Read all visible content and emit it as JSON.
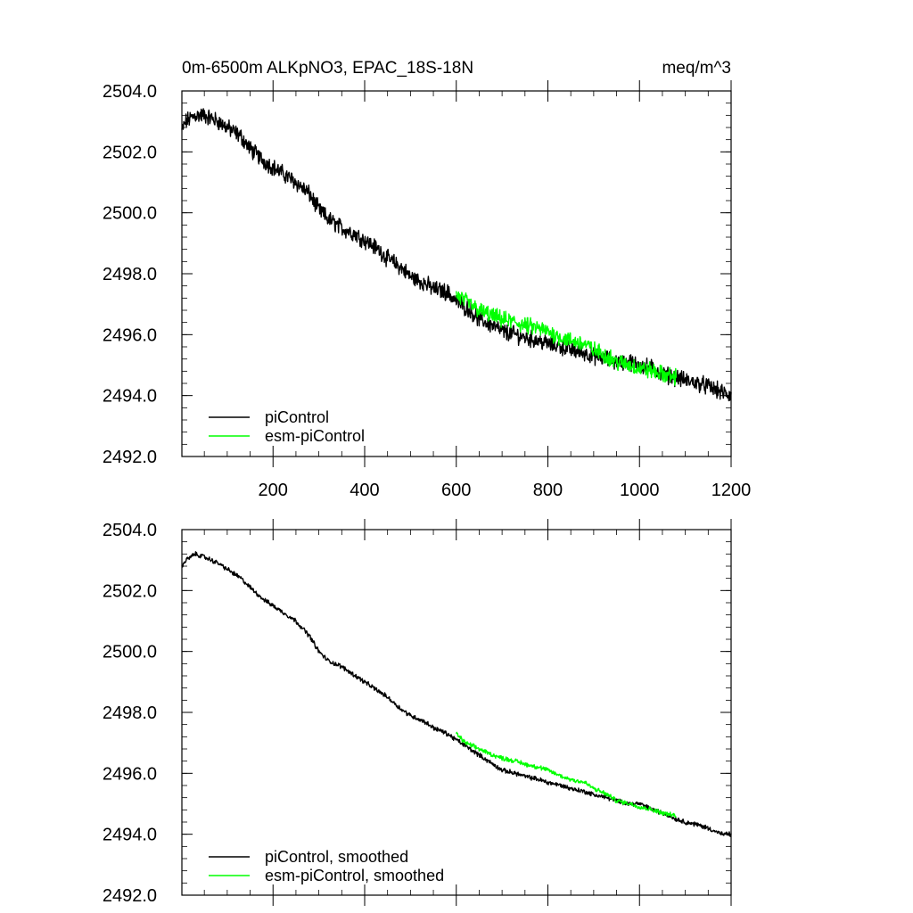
{
  "chart_data": [
    {
      "type": "line",
      "title": "0m-6500m ALKpNO3, EPAC_18S-18N",
      "units": "meq/m^3",
      "xlabel": "",
      "ylabel": "",
      "xlim": [
        1,
        1200
      ],
      "ylim": [
        2492.0,
        2504.0
      ],
      "xticks": [
        200,
        400,
        600,
        800,
        1000,
        1200
      ],
      "xtick_labels": [
        "200",
        "400",
        "600",
        "800",
        "1000",
        "1200"
      ],
      "yticks": [
        2492.0,
        2494.0,
        2496.0,
        2498.0,
        2500.0,
        2502.0,
        2504.0
      ],
      "ytick_labels": [
        "2492.0",
        "2494.0",
        "2496.0",
        "2498.0",
        "2500.0",
        "2502.0",
        "2504.0"
      ],
      "legend_position": "bottom-left",
      "series": [
        {
          "name": "piControl",
          "color": "#000000",
          "noise": 0.22,
          "x": [
            1,
            10,
            30,
            50,
            80,
            100,
            130,
            150,
            180,
            200,
            230,
            250,
            280,
            300,
            320,
            350,
            380,
            400,
            430,
            450,
            480,
            500,
            530,
            550,
            580,
            600,
            630,
            650,
            680,
            700,
            730,
            750,
            780,
            800,
            830,
            850,
            880,
            900,
            930,
            950,
            980,
            1000,
            1030,
            1050,
            1080,
            1100,
            1130,
            1150,
            1180,
            1200
          ],
          "y": [
            2502.7,
            2503.0,
            2503.2,
            2503.2,
            2503.0,
            2502.8,
            2502.5,
            2502.1,
            2501.7,
            2501.5,
            2501.2,
            2501.0,
            2500.6,
            2500.1,
            2499.8,
            2499.5,
            2499.3,
            2499.1,
            2498.8,
            2498.5,
            2498.2,
            2497.9,
            2497.7,
            2497.5,
            2497.4,
            2497.1,
            2496.8,
            2496.5,
            2496.3,
            2496.1,
            2496.0,
            2495.9,
            2495.8,
            2495.7,
            2495.6,
            2495.5,
            2495.4,
            2495.3,
            2495.2,
            2495.1,
            2495.1,
            2495.0,
            2494.9,
            2494.7,
            2494.6,
            2494.5,
            2494.4,
            2494.3,
            2494.1,
            2494.0
          ]
        },
        {
          "name": "esm-piControl",
          "color": "#00ff00",
          "noise": 0.22,
          "x": [
            600,
            620,
            650,
            680,
            700,
            730,
            750,
            780,
            800,
            830,
            850,
            880,
            900,
            930,
            950,
            980,
            1000,
            1030,
            1050,
            1080
          ],
          "y": [
            2497.3,
            2497.1,
            2496.8,
            2496.6,
            2496.5,
            2496.4,
            2496.3,
            2496.2,
            2496.1,
            2495.9,
            2495.8,
            2495.7,
            2495.5,
            2495.3,
            2495.1,
            2495.0,
            2494.9,
            2494.8,
            2494.7,
            2494.6
          ]
        }
      ]
    },
    {
      "type": "line",
      "title": "",
      "xlabel": "",
      "ylabel": "",
      "xlim": [
        1,
        1200
      ],
      "ylim": [
        2492.0,
        2504.0
      ],
      "xticks": [
        200,
        400,
        600,
        800,
        1000,
        1200
      ],
      "yticks": [
        2492.0,
        2494.0,
        2496.0,
        2498.0,
        2500.0,
        2502.0,
        2504.0
      ],
      "ytick_labels": [
        "2492.0",
        "2494.0",
        "2496.0",
        "2498.0",
        "2500.0",
        "2502.0",
        "2504.0"
      ],
      "legend_position": "bottom-left",
      "series": [
        {
          "name": "piControl, smoothed",
          "color": "#000000",
          "noise": 0.06,
          "x": [
            1,
            10,
            30,
            50,
            80,
            100,
            130,
            150,
            180,
            200,
            230,
            250,
            280,
            300,
            320,
            350,
            380,
            400,
            430,
            450,
            480,
            500,
            530,
            550,
            580,
            600,
            630,
            650,
            680,
            700,
            730,
            750,
            780,
            800,
            830,
            850,
            880,
            900,
            930,
            950,
            980,
            1000,
            1030,
            1050,
            1080,
            1100,
            1130,
            1150,
            1180,
            1200
          ],
          "y": [
            2502.8,
            2503.0,
            2503.2,
            2503.1,
            2502.9,
            2502.7,
            2502.4,
            2502.1,
            2501.7,
            2501.5,
            2501.2,
            2501.0,
            2500.5,
            2500.0,
            2499.7,
            2499.5,
            2499.2,
            2499.0,
            2498.7,
            2498.5,
            2498.1,
            2497.9,
            2497.7,
            2497.5,
            2497.3,
            2497.1,
            2496.8,
            2496.6,
            2496.3,
            2496.1,
            2496.0,
            2495.9,
            2495.8,
            2495.7,
            2495.6,
            2495.5,
            2495.4,
            2495.3,
            2495.2,
            2495.1,
            2495.0,
            2495.0,
            2494.8,
            2494.7,
            2494.5,
            2494.4,
            2494.3,
            2494.2,
            2494.0,
            2494.0
          ]
        },
        {
          "name": "esm-piControl, smoothed",
          "color": "#00ff00",
          "noise": 0.06,
          "x": [
            600,
            620,
            650,
            680,
            700,
            730,
            750,
            780,
            800,
            830,
            850,
            880,
            900,
            930,
            950,
            980,
            1000,
            1030,
            1050,
            1080
          ],
          "y": [
            2497.3,
            2497.0,
            2496.8,
            2496.6,
            2496.5,
            2496.4,
            2496.3,
            2496.2,
            2496.1,
            2495.9,
            2495.8,
            2495.7,
            2495.5,
            2495.3,
            2495.1,
            2495.0,
            2494.9,
            2494.8,
            2494.7,
            2494.6
          ]
        }
      ]
    }
  ]
}
